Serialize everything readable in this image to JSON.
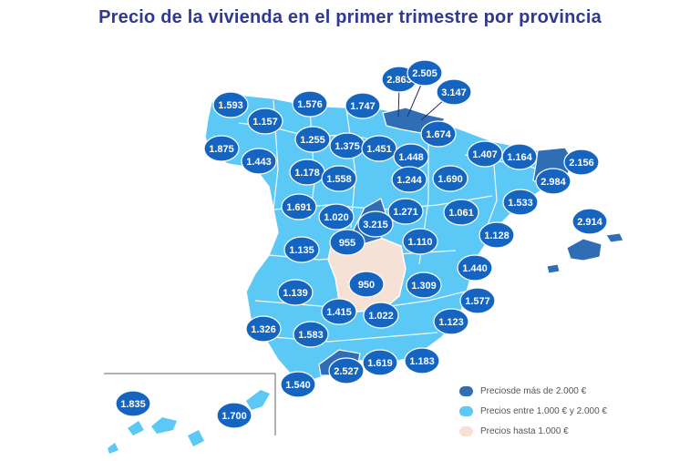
{
  "title": "Precio de la vivienda en el primer trimestre por provincia",
  "colors": {
    "high": "#2f6db5",
    "mid": "#5bc8f5",
    "low": "#f5e1d6",
    "bubble": "#1565c0",
    "border": "#ffffff"
  },
  "legend": [
    {
      "label": "Preciosde más de 2.000 €",
      "color": "#2f6db5"
    },
    {
      "label": "Precios entre 1.000 € y 2.000 €",
      "color": "#5bc8f5"
    },
    {
      "label": "Precios hasta 1.000 €",
      "color": "#f5e1d6"
    }
  ],
  "labels": [
    "2.863",
    "2.505",
    "3.147",
    "1.593",
    "1.576",
    "1.747",
    "1.157",
    "1.674",
    "1.255",
    "1.375",
    "1.451",
    "1.448",
    "1.407",
    "1.164",
    "2.156",
    "1.875",
    "1.443",
    "1.178",
    "1.558",
    "1.244",
    "1.690",
    "2.984",
    "1.691",
    "1.020",
    "3.215",
    "1.271",
    "1.061",
    "1.533",
    "2.914",
    "955",
    "1.110",
    "1.128",
    "1.135",
    "950",
    "1.309",
    "1.440",
    "1.139",
    "1.577",
    "1.415",
    "1.022",
    "1.326",
    "1.583",
    "1.123",
    "2.527",
    "1.619",
    "1.183",
    "1.540",
    "1.835",
    "1.700"
  ]
}
